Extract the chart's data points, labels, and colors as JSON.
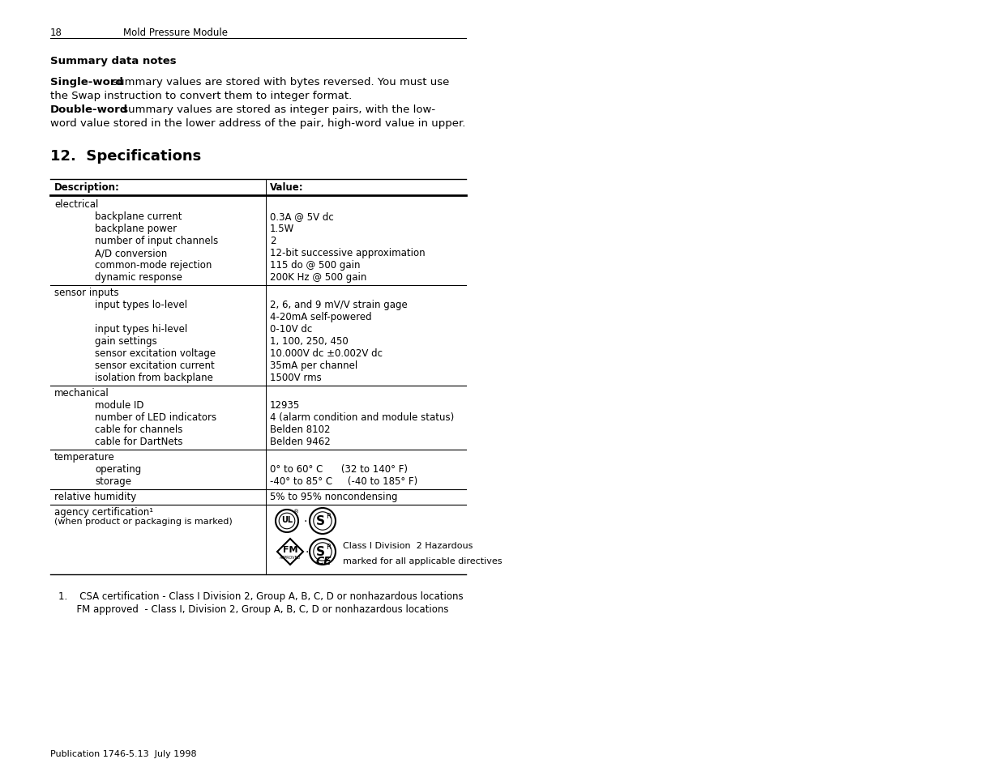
{
  "bg_color": "#ffffff",
  "page_number": "18",
  "header_text": "Mold Pressure Module",
  "summary_title": "Summary data notes",
  "para1_bold": "Single-word",
  "para1_rest": " summary values are stored with bytes reversed. You must use",
  "para1_line2": "the Swap instruction to convert them to integer format.",
  "para2_bold": "Double-word",
  "para2_rest": " summary values are stored as integer pairs, with the low-",
  "para2_line2": "word value stored in the lower address of the pair, high-word value in upper.",
  "section_title": "12.  Specifications",
  "table_col1_header": "Description:",
  "table_col2_header": "Value:",
  "table_rows": [
    {
      "type": "cat",
      "cat": "electrical",
      "sub": "",
      "val": ""
    },
    {
      "type": "sub",
      "cat": "",
      "sub": "backplane current",
      "val": "0.3A @ 5V dc"
    },
    {
      "type": "sub",
      "cat": "",
      "sub": "backplane power",
      "val": "1.5W"
    },
    {
      "type": "sub",
      "cat": "",
      "sub": "number of input channels",
      "val": "2"
    },
    {
      "type": "sub",
      "cat": "",
      "sub": "A/D conversion",
      "val": "12-bit successive approximation"
    },
    {
      "type": "sub",
      "cat": "",
      "sub": "common-mode rejection",
      "val": "115 do @ 500 gain"
    },
    {
      "type": "sub_sep",
      "cat": "",
      "sub": "dynamic response",
      "val": "200K Hz @ 500 gain"
    },
    {
      "type": "cat",
      "cat": "sensor inputs",
      "sub": "",
      "val": ""
    },
    {
      "type": "sub",
      "cat": "",
      "sub": "input types lo-level",
      "val": "2, 6, and 9 mV/V strain gage"
    },
    {
      "type": "sub_cont",
      "cat": "",
      "sub": "",
      "val": "4-20mA self-powered"
    },
    {
      "type": "sub",
      "cat": "",
      "sub": "input types hi-level",
      "val": "0-10V dc"
    },
    {
      "type": "sub",
      "cat": "",
      "sub": "gain settings",
      "val": "1, 100, 250, 450"
    },
    {
      "type": "sub",
      "cat": "",
      "sub": "sensor excitation voltage",
      "val": "10.000V dc ±0.002V dc"
    },
    {
      "type": "sub",
      "cat": "",
      "sub": "sensor excitation current",
      "val": "35mA per channel"
    },
    {
      "type": "sub_sep",
      "cat": "",
      "sub": "isolation from backplane",
      "val": "1500V rms"
    },
    {
      "type": "cat",
      "cat": "mechanical",
      "sub": "",
      "val": ""
    },
    {
      "type": "sub",
      "cat": "",
      "sub": "module ID",
      "val": "12935"
    },
    {
      "type": "sub",
      "cat": "",
      "sub": "number of LED indicators",
      "val": "4 (alarm condition and module status)"
    },
    {
      "type": "sub",
      "cat": "",
      "sub": "cable for channels",
      "val": "Belden 8102"
    },
    {
      "type": "sub_sep",
      "cat": "",
      "sub": "cable for DartNets",
      "val": "Belden 9462"
    },
    {
      "type": "cat",
      "cat": "temperature",
      "sub": "",
      "val": ""
    },
    {
      "type": "sub",
      "cat": "",
      "sub": "operating",
      "val": "0° to 60° C      (32 to 140° F)"
    },
    {
      "type": "sub_sep",
      "cat": "",
      "sub": "storage",
      "val": "-40° to 85° C     (-40 to 185° F)"
    },
    {
      "type": "cat_val_sep",
      "cat": "relative humidity",
      "sub": "",
      "val": "5% to 95% noncondensing"
    },
    {
      "type": "agency",
      "cat": "agency certification¹",
      "sub": "(when product or packaging is marked)",
      "val": ""
    }
  ],
  "footnote1": "1.    CSA certification - Class I Division 2, Group A, B, C, D or nonhazardous locations",
  "footnote2": "      FM approved  - Class I, Division 2, Group A, B, C, D or nonhazardous locations",
  "footer_text": "Publication 1746-5.13  July 1998",
  "agency_line1": "Class I Division  2 Hazardous",
  "agency_line2": "marked for all applicable directives"
}
